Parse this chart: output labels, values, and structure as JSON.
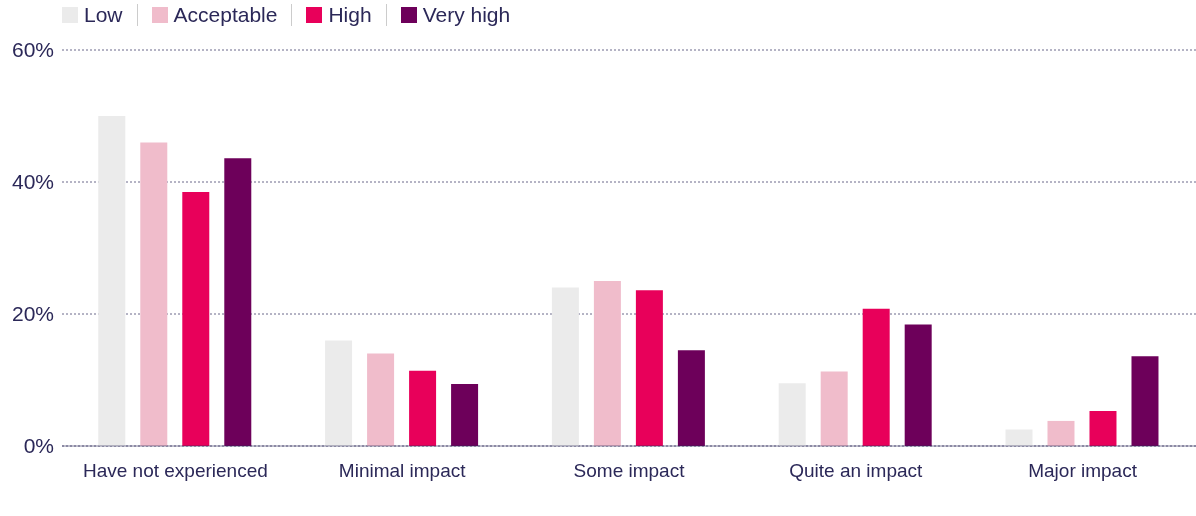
{
  "chart_data": {
    "type": "bar",
    "categories": [
      "Have not experienced",
      "Minimal impact",
      "Some impact",
      "Quite an impact",
      "Major impact"
    ],
    "series": [
      {
        "name": "Low",
        "color": "#ebebeb",
        "values": [
          50,
          16,
          24,
          9.5,
          2.5
        ]
      },
      {
        "name": "Acceptable",
        "color": "#f0bccb",
        "values": [
          46,
          14,
          25,
          11.3,
          3.8
        ]
      },
      {
        "name": "High",
        "color": "#e8005a",
        "values": [
          38.5,
          11.4,
          23.6,
          20.8,
          5.3
        ]
      },
      {
        "name": "Very high",
        "color": "#6d005a",
        "values": [
          43.6,
          9.4,
          14.5,
          18.4,
          13.6
        ]
      }
    ],
    "ylim": [
      0,
      60
    ],
    "yticks": [
      {
        "value": 0,
        "label": "0%"
      },
      {
        "value": 20,
        "label": "20%"
      },
      {
        "value": 40,
        "label": "40%"
      },
      {
        "value": 60,
        "label": "60%"
      }
    ],
    "grid": "y",
    "legend": "top left"
  }
}
